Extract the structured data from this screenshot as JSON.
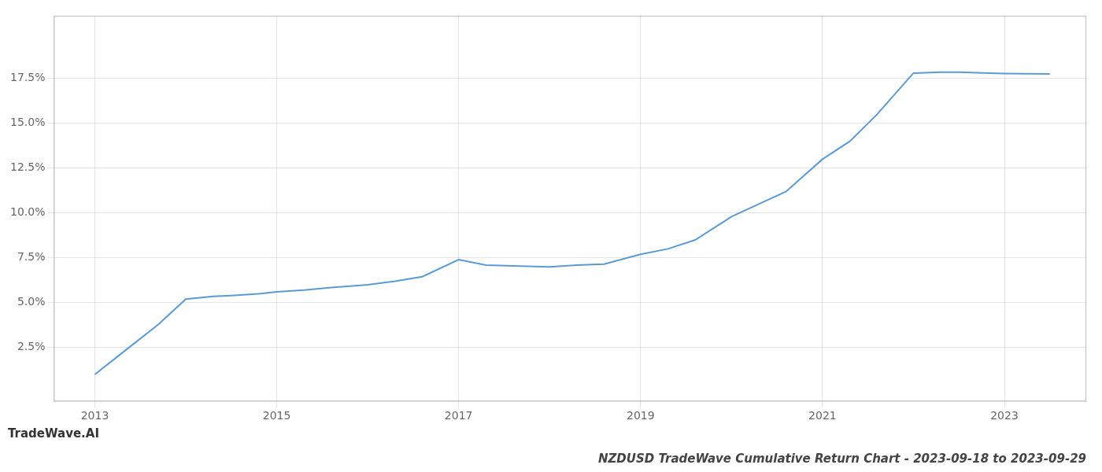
{
  "chart_data": {
    "type": "line",
    "title": "NZDUSD TradeWave Cumulative Return Chart - 2023-09-18 to 2023-09-29",
    "annotations": [
      "TradeWave.AI"
    ],
    "x": [
      2013.0,
      2013.3,
      2013.7,
      2014.0,
      2014.3,
      2014.5,
      2014.8,
      2015.0,
      2015.3,
      2015.6,
      2016.0,
      2016.3,
      2016.6,
      2017.0,
      2017.3,
      2017.6,
      2018.0,
      2018.3,
      2018.6,
      2019.0,
      2019.3,
      2019.6,
      2020.0,
      2020.3,
      2020.6,
      2021.0,
      2021.3,
      2021.6,
      2022.0,
      2022.3,
      2022.5,
      2022.7,
      2023.0,
      2023.5
    ],
    "values": [
      1.0,
      2.2,
      3.8,
      5.2,
      5.35,
      5.4,
      5.5,
      5.6,
      5.7,
      5.85,
      6.0,
      6.2,
      6.45,
      7.4,
      7.1,
      7.05,
      7.0,
      7.1,
      7.15,
      7.7,
      8.0,
      8.5,
      9.8,
      10.5,
      11.2,
      13.0,
      14.0,
      15.5,
      17.8,
      17.85,
      17.85,
      17.82,
      17.78,
      17.75
    ],
    "color": "#5b9bd5",
    "xlim": [
      2012.55,
      2023.9
    ],
    "ylim": [
      -0.5,
      21.0
    ],
    "xticks": [
      2013,
      2015,
      2017,
      2019,
      2021,
      2023
    ],
    "yticks": [
      {
        "value": 2.5,
        "label": "2.5%"
      },
      {
        "value": 5.0,
        "label": "5.0%"
      },
      {
        "value": 7.5,
        "label": "7.5%"
      },
      {
        "value": 10.0,
        "label": "10.0%"
      },
      {
        "value": 12.5,
        "label": "12.5%"
      },
      {
        "value": 15.0,
        "label": "15.0%"
      },
      {
        "value": 17.5,
        "label": "17.5%"
      }
    ],
    "grid": true
  }
}
